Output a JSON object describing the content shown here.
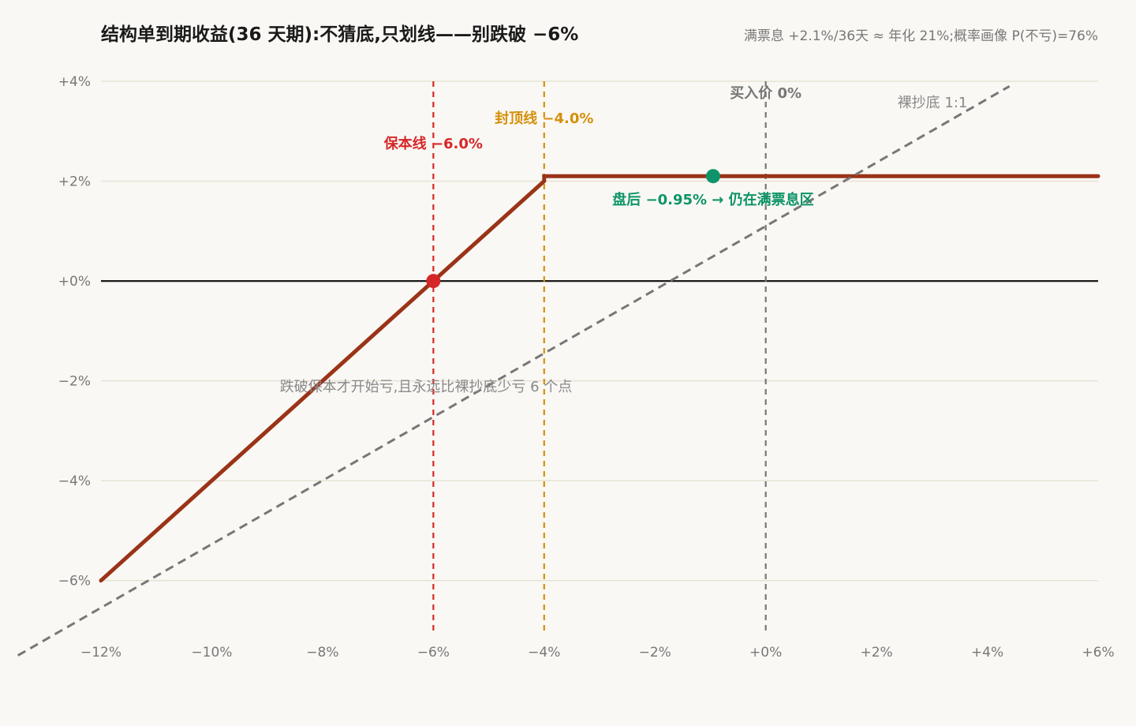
{
  "chart_data": {
    "type": "line",
    "title": "结构单到期收益(36 天期):不猜底,只划线——别跌破 −6%",
    "subtitle": "满票息 +2.1%/36天 ≈ 年化 21%;概率画像 P(不亏)=76%",
    "xlim": [
      -12,
      6
    ],
    "ylim": [
      -7,
      4
    ],
    "x_ticks": [
      -12,
      -10,
      -8,
      -6,
      -4,
      -2,
      0,
      2,
      4,
      6
    ],
    "x_tick_labels": [
      "−12%",
      "−10%",
      "−8%",
      "−6%",
      "−4%",
      "−2%",
      "+0%",
      "+2%",
      "+4%",
      "+6%"
    ],
    "y_ticks": [
      4,
      2,
      0,
      -2,
      -4,
      -6
    ],
    "y_tick_labels": [
      "+4%",
      "+2%",
      "+0%",
      "−2%",
      "−4%",
      "−6%"
    ],
    "grid": "horizontal",
    "series": [
      {
        "name": "",
        "kind": "payoff",
        "color": "#9a3318",
        "points": [
          [
            -12,
            -6
          ],
          [
            -6,
            0
          ],
          [
            -4,
            2
          ],
          [
            -4,
            2.1
          ],
          [
            6,
            2.1
          ]
        ]
      },
      {
        "name": "裸抄底 1:1",
        "kind": "dashed",
        "color": "#777777",
        "points": [
          [
            -13.5,
            -7.5
          ],
          [
            4.4,
            3.9
          ]
        ]
      }
    ],
    "vlines": [
      {
        "x": -6,
        "label": "保本线 −6.0%",
        "color": "#d62728"
      },
      {
        "x": -4,
        "label": "封顶线 −4.0%",
        "color": "#d4900a"
      },
      {
        "x": 0,
        "label": "买入价 0%",
        "color": "#777777"
      }
    ],
    "hline": {
      "y": 0,
      "color": "#1a1a1a"
    },
    "points": [
      {
        "x": -6,
        "y": 0,
        "color": "#d62728",
        "label": ""
      },
      {
        "x": -0.95,
        "y": 2.1,
        "color": "#0e9468",
        "label": "盘后 −0.95% → 仍在满票息区"
      }
    ],
    "annotations": [
      {
        "text": "跌破保本才开始亏,且永远比裸抄底少亏 6 个点",
        "x": -9.2,
        "y": -2.1
      }
    ]
  }
}
